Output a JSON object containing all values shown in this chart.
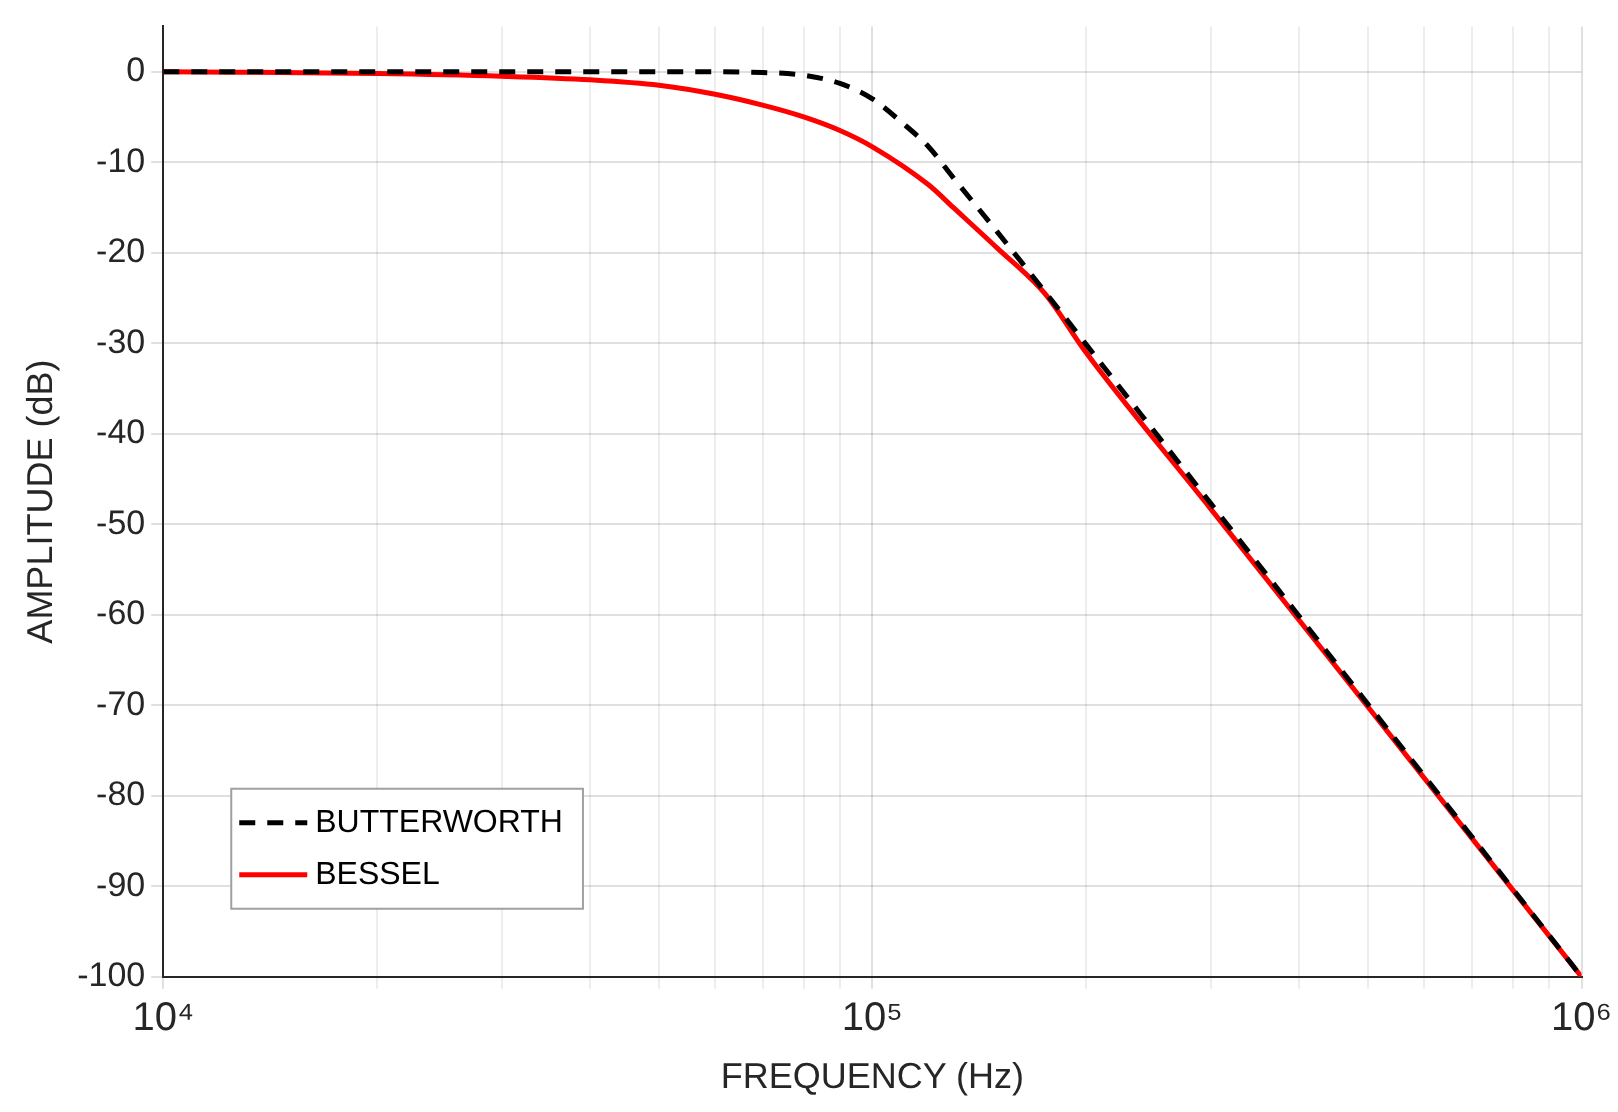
{
  "chart_data": {
    "type": "line",
    "xlabel": "FREQUENCY (Hz)",
    "ylabel": "AMPLITUDE (dB)",
    "log": "x",
    "xlim": [
      10000,
      1000000
    ],
    "xticks": [
      {
        "value": 10000,
        "label": "10⁴"
      },
      {
        "value": 20000,
        "label": null
      },
      {
        "value": 30000,
        "label": null
      },
      {
        "value": 40000,
        "label": null
      },
      {
        "value": 50000,
        "label": null
      },
      {
        "value": 60000,
        "label": null
      },
      {
        "value": 70000,
        "label": null
      },
      {
        "value": 80000,
        "label": null
      },
      {
        "value": 90000,
        "label": null
      },
      {
        "value": 100000,
        "label": "10⁵"
      },
      {
        "value": 200000,
        "label": null
      },
      {
        "value": 300000,
        "label": null
      },
      {
        "value": 400000,
        "label": null
      },
      {
        "value": 500000,
        "label": null
      },
      {
        "value": 600000,
        "label": null
      },
      {
        "value": 700000,
        "label": null
      },
      {
        "value": 800000,
        "label": null
      },
      {
        "value": 900000,
        "label": null
      },
      {
        "value": 1000000,
        "label": "10⁶"
      }
    ],
    "ylim": [
      -100,
      5
    ],
    "yticks": [
      -100,
      -90,
      -80,
      -70,
      -60,
      -50,
      -40,
      -30,
      -20,
      -10,
      0
    ],
    "grid": true,
    "legend": "bottom left",
    "marker": "none",
    "series": [
      {
        "name": "BUTTERWORTH",
        "color": "#000000",
        "line_style": "dashed",
        "x": [
          10000,
          30000,
          50000,
          70000,
          80000,
          90000,
          100000,
          110000,
          120000,
          130000,
          150000,
          175000,
          200000,
          300000,
          400000,
          500000,
          700000,
          1000000
        ],
        "values": [
          0,
          0,
          0,
          -0.1,
          -0.4,
          -1.3,
          -3,
          -5.6,
          -8.3,
          -11.7,
          -17.7,
          -24.3,
          -30.1,
          -47.7,
          -60.2,
          -69.9,
          -84.5,
          -100
        ]
      },
      {
        "name": "BESSEL",
        "color": "#ff0000",
        "line_style": "solid",
        "x": [
          10000,
          20000,
          30000,
          40000,
          50000,
          60000,
          70000,
          80000,
          90000,
          100000,
          120000,
          130000,
          150000,
          175000,
          200000,
          300000,
          500000,
          1000000
        ],
        "values": [
          0,
          -0.2,
          -0.5,
          -0.9,
          -1.5,
          -2.5,
          -3.7,
          -5,
          -6.5,
          -8.3,
          -12.5,
          -15,
          -19.5,
          -24.5,
          -31,
          -48.3,
          -70.2,
          -100
        ]
      }
    ]
  }
}
